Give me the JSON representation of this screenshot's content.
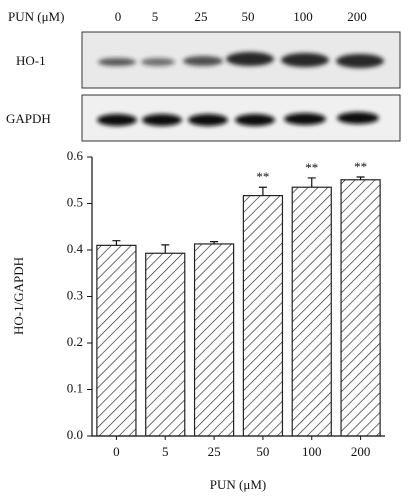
{
  "blot": {
    "header": "PUN (μM)",
    "lanes": [
      "0",
      "5",
      "25",
      "50",
      "100",
      "200"
    ],
    "rows": [
      "HO-1",
      "GAPDH"
    ]
  },
  "chart_data": {
    "type": "bar",
    "y_label": "HO-1/GAPDH",
    "x_label": "PUN (μM)",
    "categories": [
      "0",
      "5",
      "25",
      "50",
      "100",
      "200"
    ],
    "values": [
      0.41,
      0.393,
      0.413,
      0.517,
      0.535,
      0.551
    ],
    "errors": [
      0.01,
      0.018,
      0.005,
      0.018,
      0.02,
      0.006
    ],
    "significance": [
      null,
      null,
      null,
      "**",
      "**",
      "**"
    ],
    "ylim": [
      0,
      0.6
    ],
    "yticks": [
      {
        "value": 0,
        "label": "0.0"
      },
      0.1,
      0.2,
      0.3,
      0.4,
      0.5,
      0.6
    ],
    "color": "#222222"
  }
}
